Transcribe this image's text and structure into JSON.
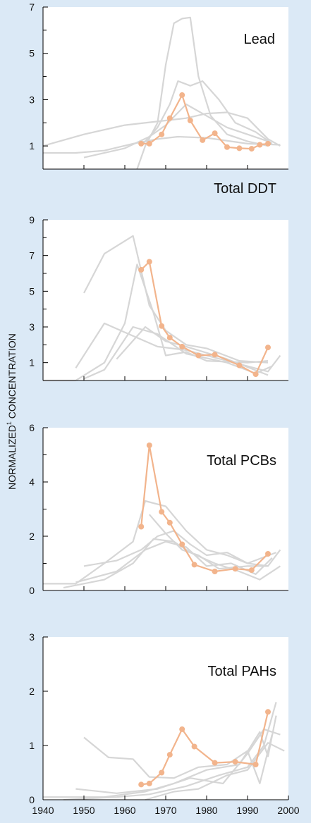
{
  "colors": {
    "background": "#dbe9f6",
    "plot_background": "#ffffff",
    "highlight": "#f2b48c",
    "other_sites": "#d6d6d6",
    "axis": "#000000"
  },
  "y_label": {
    "main": "NORMALIZED",
    "sup": "1",
    "rest": " CONCENTRATION"
  },
  "chart_data": [
    {
      "type": "line",
      "title": "Lead",
      "xlim": [
        1940,
        2000
      ],
      "ylim": [
        0,
        7
      ],
      "y_ticks": [
        1,
        3,
        5,
        7
      ],
      "x_ticks": [
        1950,
        1960,
        1970,
        1980,
        1990
      ],
      "highlight": {
        "x": [
          1964,
          1966,
          1969,
          1971,
          1974,
          1976,
          1979,
          1982,
          1985,
          1988,
          1991,
          1993,
          1995
        ],
        "y": [
          1.1,
          1.1,
          1.5,
          2.2,
          3.2,
          2.1,
          1.25,
          1.55,
          0.95,
          0.9,
          0.88,
          1.05,
          1.1
        ]
      },
      "others": [
        [
          [
            1940,
            1.0
          ],
          [
            1950,
            1.5
          ],
          [
            1960,
            1.9
          ],
          [
            1970,
            2.1
          ],
          [
            1975,
            2.2
          ],
          [
            1980,
            2.4
          ],
          [
            1985,
            2.45
          ],
          [
            1990,
            2.2
          ],
          [
            1995,
            1.3
          ],
          [
            1998,
            1.0
          ]
        ],
        [
          [
            1940,
            0.7
          ],
          [
            1948,
            0.7
          ],
          [
            1955,
            0.8
          ],
          [
            1962,
            1.1
          ],
          [
            1968,
            1.3
          ],
          [
            1973,
            1.4
          ],
          [
            1980,
            1.35
          ],
          [
            1990,
            1.1
          ],
          [
            1998,
            1.05
          ]
        ],
        [
          [
            1950,
            0.5
          ],
          [
            1960,
            0.9
          ],
          [
            1966,
            1.4
          ],
          [
            1970,
            1.9
          ],
          [
            1975,
            2.8
          ],
          [
            1980,
            2.3
          ],
          [
            1985,
            1.8
          ],
          [
            1990,
            1.5
          ],
          [
            1995,
            1.2
          ]
        ],
        [
          [
            1964,
            1.0
          ],
          [
            1968,
            1.8
          ],
          [
            1971,
            2.8
          ],
          [
            1973,
            3.8
          ],
          [
            1976,
            3.6
          ],
          [
            1979,
            3.8
          ],
          [
            1983,
            3.0
          ],
          [
            1987,
            2.0
          ],
          [
            1992,
            1.6
          ],
          [
            1996,
            1.1
          ]
        ],
        [
          [
            1963,
            0.0
          ],
          [
            1965,
            1.0
          ],
          [
            1968,
            2.0
          ],
          [
            1970,
            4.5
          ],
          [
            1972,
            6.3
          ],
          [
            1974,
            6.5
          ],
          [
            1976,
            6.55
          ],
          [
            1978,
            4.0
          ],
          [
            1981,
            2.3
          ],
          [
            1985,
            1.5
          ],
          [
            1990,
            1.2
          ],
          [
            1995,
            1.0
          ]
        ]
      ]
    },
    {
      "type": "line",
      "title": "Total DDT",
      "xlim": [
        1940,
        2000
      ],
      "ylim": [
        0,
        9
      ],
      "y_ticks": [
        1,
        3,
        5,
        7,
        9
      ],
      "x_ticks": [
        1950,
        1960,
        1970,
        1980,
        1990
      ],
      "highlight": {
        "x": [
          1964,
          1966,
          1969,
          1971,
          1974,
          1978,
          1982,
          1988,
          1992,
          1995
        ],
        "y": [
          6.2,
          6.65,
          3.05,
          2.4,
          1.9,
          1.4,
          1.45,
          0.85,
          0.35,
          1.85
        ]
      },
      "others": [
        [
          [
            1950,
            4.9
          ],
          [
            1955,
            7.1
          ],
          [
            1962,
            8.1
          ],
          [
            1966,
            4.2
          ],
          [
            1970,
            2.8
          ],
          [
            1975,
            2.0
          ],
          [
            1980,
            1.8
          ],
          [
            1988,
            1.1
          ],
          [
            1995,
            1.0
          ]
        ],
        [
          [
            1940,
            0.0
          ],
          [
            1948,
            0.0
          ],
          [
            1955,
            1.0
          ],
          [
            1960,
            3.2
          ],
          [
            1963,
            6.5
          ],
          [
            1967,
            3.8
          ],
          [
            1970,
            1.4
          ],
          [
            1975,
            1.6
          ],
          [
            1980,
            1.1
          ],
          [
            1990,
            1.0
          ],
          [
            1995,
            1.1
          ]
        ],
        [
          [
            1948,
            0.7
          ],
          [
            1955,
            3.2
          ],
          [
            1962,
            2.5
          ],
          [
            1968,
            1.9
          ],
          [
            1975,
            1.7
          ],
          [
            1985,
            1.1
          ],
          [
            1995,
            0.5
          ],
          [
            1998,
            1.4
          ]
        ],
        [
          [
            1950,
            0.1
          ],
          [
            1955,
            0.6
          ],
          [
            1962,
            3.0
          ],
          [
            1968,
            2.6
          ],
          [
            1975,
            1.5
          ],
          [
            1985,
            1.0
          ],
          [
            1992,
            0.4
          ],
          [
            1996,
            0.8
          ]
        ],
        [
          [
            1958,
            1.2
          ],
          [
            1965,
            3.0
          ],
          [
            1970,
            2.2
          ],
          [
            1975,
            1.9
          ],
          [
            1985,
            1.2
          ],
          [
            1995,
            0.3
          ]
        ]
      ]
    },
    {
      "type": "line",
      "title": "Total PCBs",
      "xlim": [
        1940,
        2000
      ],
      "ylim": [
        0,
        6
      ],
      "y_ticks": [
        0,
        2,
        4,
        6
      ],
      "x_ticks": [
        1950,
        1960,
        1970,
        1980,
        1990
      ],
      "highlight": {
        "x": [
          1964,
          1966,
          1969,
          1971,
          1974,
          1977,
          1982,
          1987,
          1991,
          1995
        ],
        "y": [
          2.35,
          5.35,
          2.9,
          2.5,
          1.7,
          0.95,
          0.7,
          0.8,
          0.75,
          1.35
        ]
      },
      "others": [
        [
          [
            1940,
            0.25
          ],
          [
            1948,
            0.25
          ],
          [
            1955,
            1.0
          ],
          [
            1962,
            1.8
          ],
          [
            1965,
            3.3
          ],
          [
            1970,
            3.1
          ],
          [
            1975,
            2.2
          ],
          [
            1980,
            1.5
          ],
          [
            1985,
            1.3
          ],
          [
            1990,
            1.0
          ],
          [
            1995,
            0.9
          ],
          [
            1998,
            1.5
          ]
        ],
        [
          [
            1950,
            0.9
          ],
          [
            1958,
            1.1
          ],
          [
            1964,
            1.5
          ],
          [
            1968,
            2.0
          ],
          [
            1972,
            2.2
          ],
          [
            1976,
            1.7
          ],
          [
            1980,
            1.3
          ],
          [
            1985,
            1.4
          ],
          [
            1990,
            1.0
          ],
          [
            1997,
            1.4
          ]
        ],
        [
          [
            1945,
            0.1
          ],
          [
            1955,
            0.4
          ],
          [
            1962,
            1.0
          ],
          [
            1967,
            1.9
          ],
          [
            1972,
            1.8
          ],
          [
            1976,
            1.4
          ],
          [
            1982,
            1.0
          ],
          [
            1988,
            0.7
          ],
          [
            1993,
            0.4
          ],
          [
            1998,
            0.9
          ]
        ],
        [
          [
            1948,
            0.3
          ],
          [
            1958,
            0.7
          ],
          [
            1965,
            1.5
          ],
          [
            1970,
            1.8
          ],
          [
            1975,
            1.6
          ],
          [
            1980,
            0.9
          ],
          [
            1986,
            1.0
          ],
          [
            1992,
            0.6
          ],
          [
            1996,
            1.2
          ]
        ],
        [
          [
            1966,
            2.8
          ],
          [
            1970,
            2.1
          ],
          [
            1974,
            1.5
          ],
          [
            1978,
            1.3
          ],
          [
            1983,
            0.8
          ],
          [
            1990,
            0.9
          ],
          [
            1995,
            0.9
          ]
        ]
      ]
    },
    {
      "type": "line",
      "title": "Total PAHs",
      "xlim": [
        1940,
        2000
      ],
      "ylim": [
        0,
        3
      ],
      "y_ticks": [
        0,
        1,
        2,
        3
      ],
      "x_ticks": [
        1940,
        1950,
        1960,
        1970,
        1980,
        1990,
        2000
      ],
      "x_tick_labels": [
        "1940",
        "1950",
        "1960",
        "1970",
        "1980",
        "1990",
        "2000"
      ],
      "highlight": {
        "x": [
          1964,
          1966,
          1969,
          1971,
          1974,
          1977,
          1982,
          1987,
          1992,
          1995
        ],
        "y": [
          0.28,
          0.3,
          0.5,
          0.83,
          1.3,
          0.98,
          0.68,
          0.7,
          0.65,
          1.62
        ]
      },
      "others": [
        [
          [
            1950,
            1.15
          ],
          [
            1956,
            0.78
          ],
          [
            1962,
            0.75
          ],
          [
            1966,
            0.42
          ],
          [
            1972,
            0.4
          ],
          [
            1978,
            0.6
          ],
          [
            1985,
            0.65
          ],
          [
            1990,
            0.9
          ],
          [
            1993,
            0.3
          ],
          [
            1996,
            1.2
          ]
        ],
        [
          [
            1940,
            0.05
          ],
          [
            1955,
            0.05
          ],
          [
            1965,
            0.15
          ],
          [
            1972,
            0.3
          ],
          [
            1980,
            0.55
          ],
          [
            1988,
            0.65
          ],
          [
            1993,
            1.25
          ],
          [
            1995,
            0.8
          ],
          [
            1997,
            1.55
          ]
        ],
        [
          [
            1945,
            0.0
          ],
          [
            1958,
            0.05
          ],
          [
            1966,
            0.1
          ],
          [
            1975,
            0.25
          ],
          [
            1983,
            0.45
          ],
          [
            1990,
            0.6
          ],
          [
            1994,
            1.0
          ],
          [
            1997,
            1.8
          ]
        ],
        [
          [
            1948,
            0.2
          ],
          [
            1958,
            0.12
          ],
          [
            1968,
            0.2
          ],
          [
            1976,
            0.4
          ],
          [
            1984,
            0.3
          ],
          [
            1990,
            0.85
          ],
          [
            1994,
            1.3
          ],
          [
            1998,
            1.2
          ]
        ],
        [
          [
            1965,
            0.0
          ],
          [
            1972,
            0.15
          ],
          [
            1978,
            0.2
          ],
          [
            1985,
            0.45
          ],
          [
            1990,
            0.55
          ],
          [
            1995,
            1.05
          ],
          [
            1999,
            0.9
          ]
        ]
      ]
    }
  ]
}
